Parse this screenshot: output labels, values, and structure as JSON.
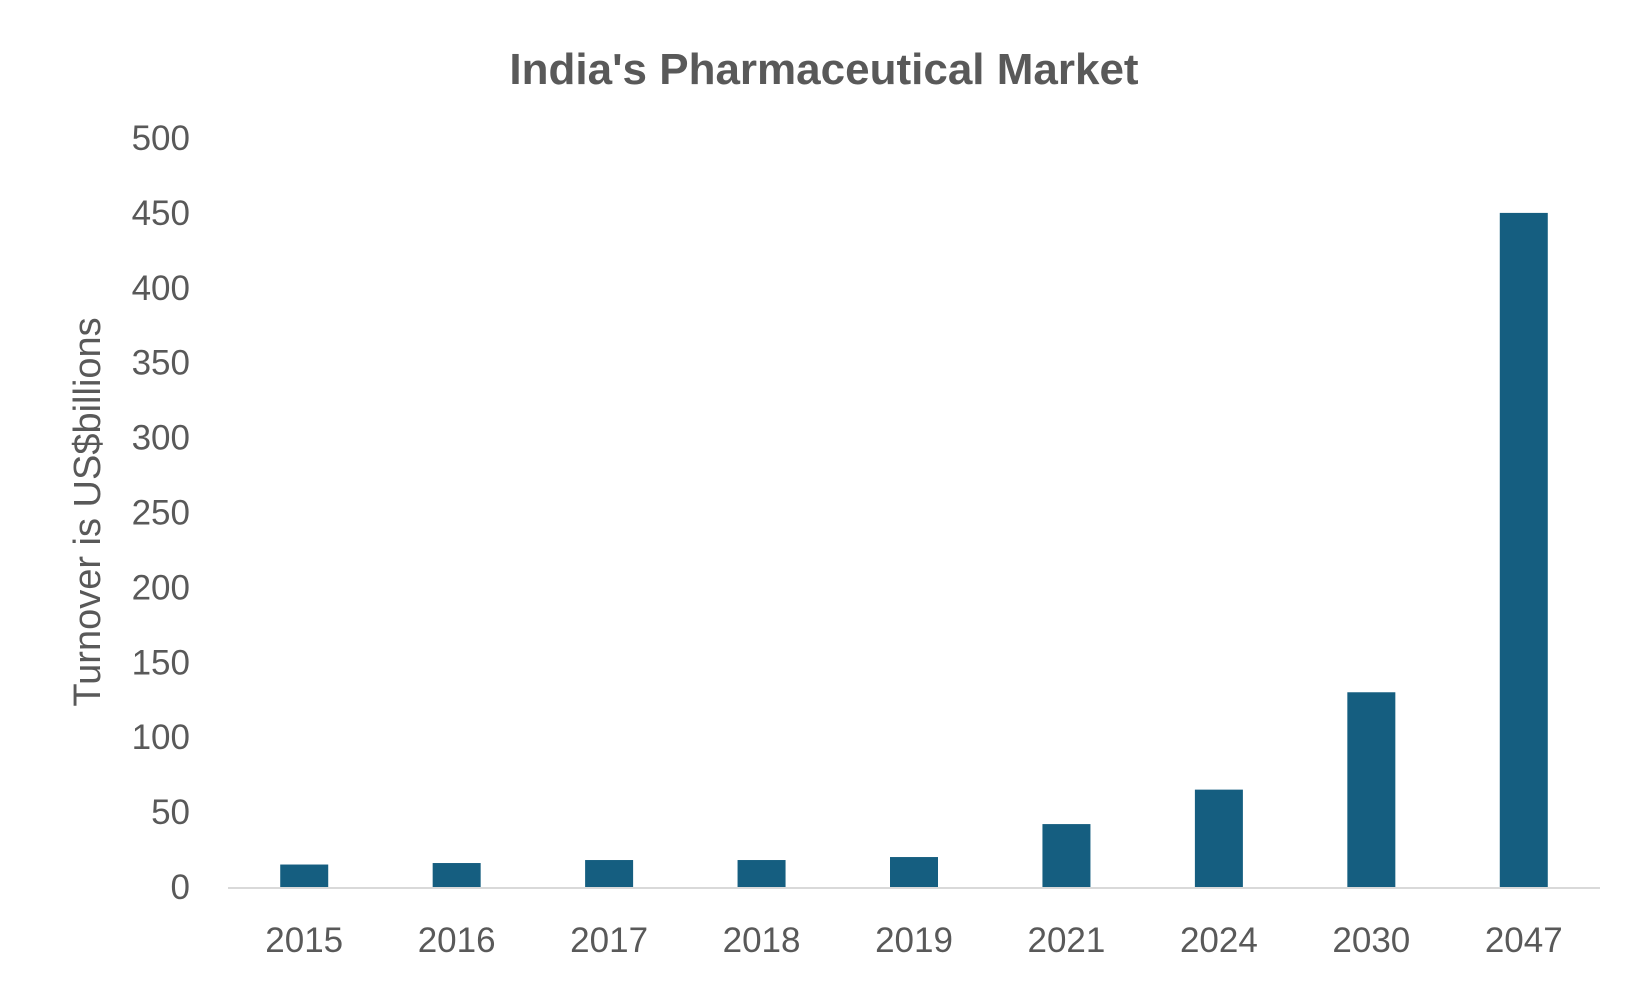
{
  "chart_data": {
    "type": "bar",
    "title": "India's Pharmaceutical Market",
    "xlabel": "",
    "ylabel": "Turnover is US$billions",
    "categories": [
      "2015",
      "2016",
      "2017",
      "2018",
      "2019",
      "2021",
      "2024",
      "2030",
      "2047"
    ],
    "values": [
      15,
      16,
      18,
      18,
      20,
      42,
      65,
      130,
      450
    ],
    "ylim": [
      0,
      500
    ],
    "yticks": [
      0,
      50,
      100,
      150,
      200,
      250,
      300,
      350,
      400,
      450,
      500
    ],
    "grid": false,
    "legend": "none",
    "colors": {
      "bar": "#155E80",
      "axis": "#D9D9D9",
      "text": "#595959"
    }
  }
}
